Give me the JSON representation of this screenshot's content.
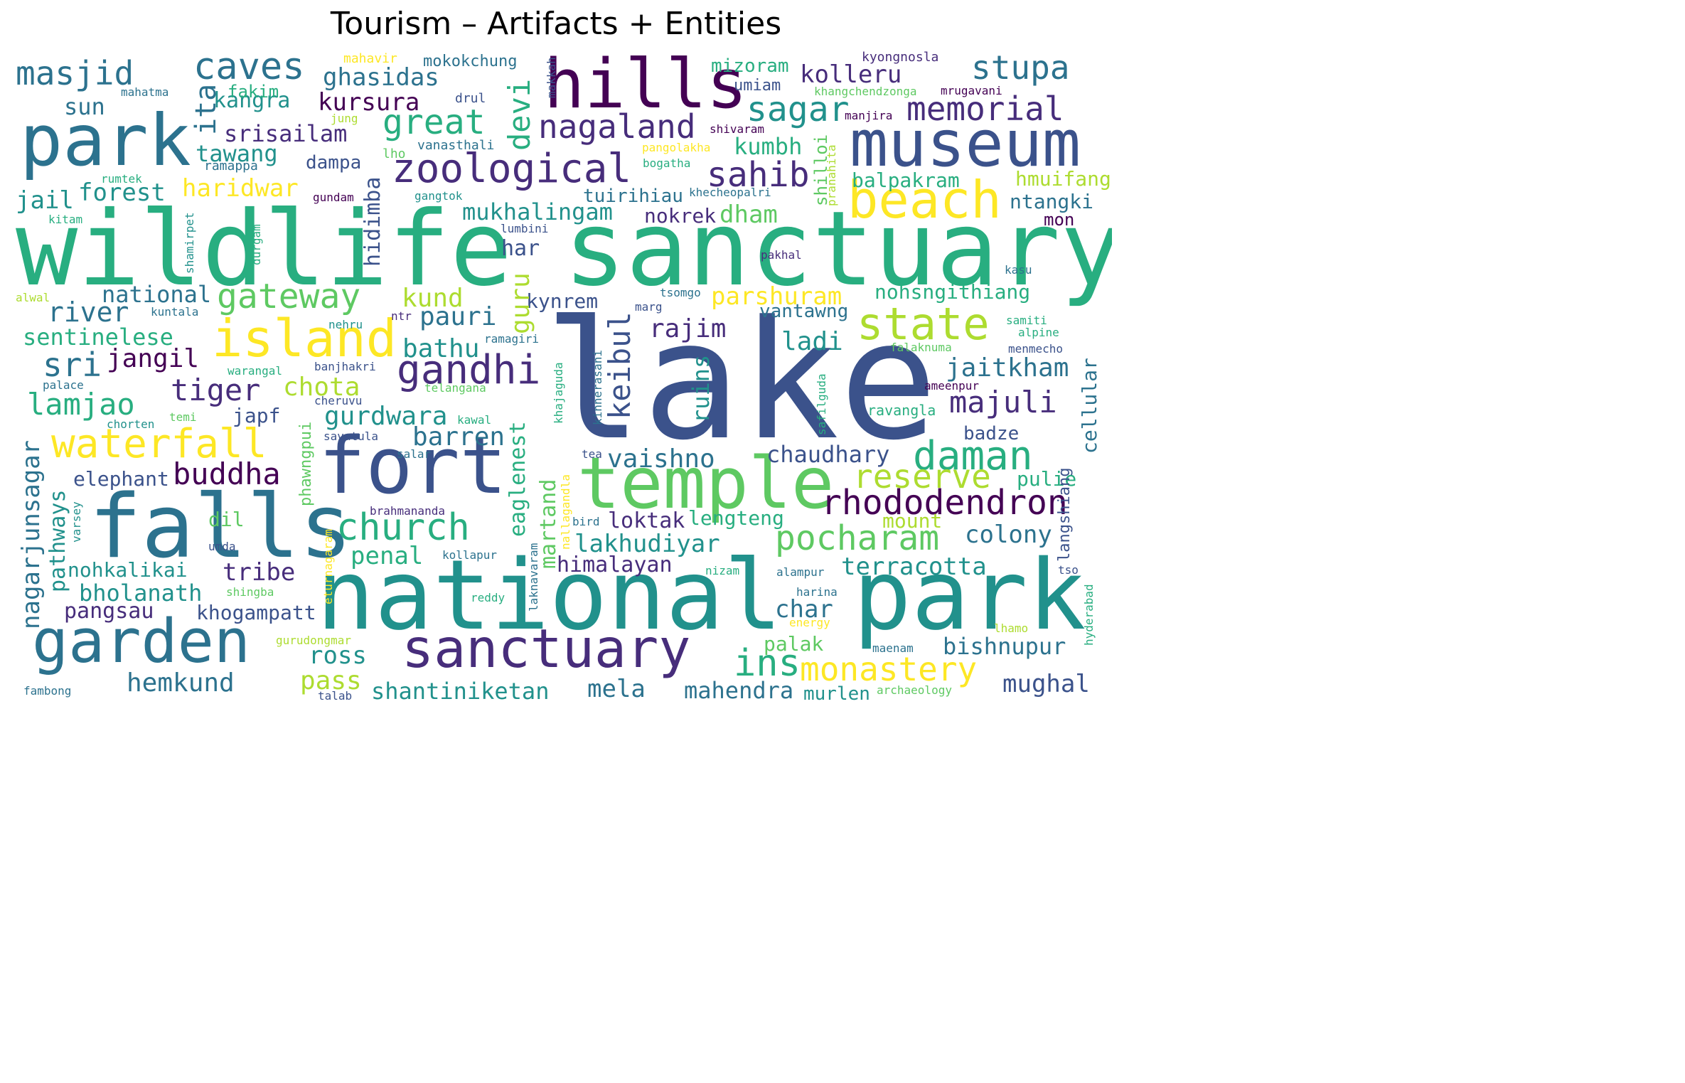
{
  "title": "Tourism – Artifacts + Entities",
  "palette": {
    "dark_purple": "#440154",
    "purple": "#472d7b",
    "indigo": "#3b528b",
    "blue": "#2c728e",
    "teal": "#21918c",
    "green": "#28ae80",
    "light_green": "#5ec962",
    "lime": "#addc30",
    "yellow": "#fde725"
  },
  "words": [
    {
      "text": "wildlife",
      "color": "#28ae80"
    },
    {
      "text": "sanctuary",
      "color": "#28ae80"
    },
    {
      "text": "lake",
      "color": "#3b528b"
    },
    {
      "text": "national",
      "color": "#21918c"
    },
    {
      "text": "park",
      "color": "#21918c"
    },
    {
      "text": "park",
      "color": "#2c728e"
    },
    {
      "text": "museum",
      "color": "#3b528b"
    },
    {
      "text": "hills",
      "color": "#440154"
    },
    {
      "text": "falls",
      "color": "#2c728e"
    },
    {
      "text": "fort",
      "color": "#3b528b"
    },
    {
      "text": "temple",
      "color": "#5ec962"
    },
    {
      "text": "garden",
      "color": "#2c728e"
    },
    {
      "text": "sanctuary",
      "color": "#472d7b"
    },
    {
      "text": "beach",
      "color": "#fde725"
    },
    {
      "text": "island",
      "color": "#fde725"
    },
    {
      "text": "zoological",
      "color": "#472d7b"
    },
    {
      "text": "masjid",
      "color": "#2c728e"
    },
    {
      "text": "caves",
      "color": "#2c728e"
    },
    {
      "text": "stupa",
      "color": "#2c728e"
    },
    {
      "text": "memorial",
      "color": "#472d7b"
    },
    {
      "text": "nagaland",
      "color": "#472d7b"
    },
    {
      "text": "sagar",
      "color": "#21918c"
    },
    {
      "text": "sahib",
      "color": "#472d7b"
    },
    {
      "text": "gandhi",
      "color": "#472d7b"
    },
    {
      "text": "state",
      "color": "#addc30"
    },
    {
      "text": "church",
      "color": "#28ae80"
    },
    {
      "text": "waterfall",
      "color": "#fde725"
    },
    {
      "text": "daman",
      "color": "#28ae80"
    },
    {
      "text": "rhododendron",
      "color": "#440154"
    },
    {
      "text": "pocharam",
      "color": "#5ec962"
    },
    {
      "text": "monastery",
      "color": "#fde725"
    },
    {
      "text": "ins",
      "color": "#28ae80"
    },
    {
      "text": "reserve",
      "color": "#addc30"
    },
    {
      "text": "great",
      "color": "#28ae80"
    },
    {
      "text": "gateway",
      "color": "#5ec962"
    },
    {
      "text": "tiger",
      "color": "#472d7b"
    },
    {
      "text": "buddha",
      "color": "#440154"
    },
    {
      "text": "majuli",
      "color": "#472d7b"
    },
    {
      "text": "lamjao",
      "color": "#28ae80"
    },
    {
      "text": "river",
      "color": "#2c728e"
    },
    {
      "text": "sri",
      "color": "#2c728e"
    },
    {
      "text": "jangil",
      "color": "#440154"
    },
    {
      "text": "kolleru",
      "color": "#472d7b"
    },
    {
      "text": "kursura",
      "color": "#440154"
    },
    {
      "text": "kangra",
      "color": "#21918c"
    },
    {
      "text": "ghasidas",
      "color": "#2c728e"
    },
    {
      "text": "srisailam",
      "color": "#472d7b"
    },
    {
      "text": "tawang",
      "color": "#21918c"
    },
    {
      "text": "forest",
      "color": "#21918c"
    },
    {
      "text": "jail",
      "color": "#21918c"
    },
    {
      "text": "haridwar",
      "color": "#fde725"
    },
    {
      "text": "mukhalingam",
      "color": "#21918c"
    },
    {
      "text": "kumbh",
      "color": "#28ae80"
    },
    {
      "text": "dham",
      "color": "#5ec962"
    },
    {
      "text": "nokrek",
      "color": "#472d7b"
    },
    {
      "text": "tuirihiau",
      "color": "#2c728e"
    },
    {
      "text": "balpakram",
      "color": "#28ae80"
    },
    {
      "text": "hmuifang",
      "color": "#addc30"
    },
    {
      "text": "ntangki",
      "color": "#2c728e"
    },
    {
      "text": "mon",
      "color": "#440154"
    },
    {
      "text": "sun",
      "color": "#2c728e"
    },
    {
      "text": "national",
      "color": "#2c728e"
    },
    {
      "text": "sentinelese",
      "color": "#28ae80"
    },
    {
      "text": "kund",
      "color": "#addc30"
    },
    {
      "text": "pauri",
      "color": "#2c728e"
    },
    {
      "text": "bathu",
      "color": "#21918c"
    },
    {
      "text": "chota",
      "color": "#addc30"
    },
    {
      "text": "gurdwara",
      "color": "#21918c"
    },
    {
      "text": "barren",
      "color": "#2c728e"
    },
    {
      "text": "vaishno",
      "color": "#2c728e"
    },
    {
      "text": "rajim",
      "color": "#472d7b"
    },
    {
      "text": "ladi",
      "color": "#21918c"
    },
    {
      "text": "kynrem",
      "color": "#3b528b"
    },
    {
      "text": "parshuram",
      "color": "#fde725"
    },
    {
      "text": "nohsngithiang",
      "color": "#28ae80"
    },
    {
      "text": "vantawng",
      "color": "#2c728e"
    },
    {
      "text": "jaitkham",
      "color": "#2c728e"
    },
    {
      "text": "chaudhary",
      "color": "#3b528b"
    },
    {
      "text": "badze",
      "color": "#3b528b"
    },
    {
      "text": "pulie",
      "color": "#28ae80"
    },
    {
      "text": "colony",
      "color": "#2c728e"
    },
    {
      "text": "loktak",
      "color": "#472d7b"
    },
    {
      "text": "lakhudiyar",
      "color": "#21918c"
    },
    {
      "text": "himalayan",
      "color": "#472d7b"
    },
    {
      "text": "terracotta",
      "color": "#21918c"
    },
    {
      "text": "bishnupur",
      "color": "#2c728e"
    },
    {
      "text": "mughal",
      "color": "#3b528b"
    },
    {
      "text": "mahendra",
      "color": "#2c728e"
    },
    {
      "text": "mela",
      "color": "#2c728e"
    },
    {
      "text": "shantiniketan",
      "color": "#21918c"
    },
    {
      "text": "hemkund",
      "color": "#2c728e"
    },
    {
      "text": "ross",
      "color": "#21918c"
    },
    {
      "text": "pass",
      "color": "#addc30"
    },
    {
      "text": "palak",
      "color": "#5ec962"
    },
    {
      "text": "char",
      "color": "#2c728e"
    },
    {
      "text": "tribe",
      "color": "#472d7b"
    },
    {
      "text": "penal",
      "color": "#28ae80"
    },
    {
      "text": "bholanath",
      "color": "#21918c"
    },
    {
      "text": "pangsau",
      "color": "#472d7b"
    },
    {
      "text": "khogampatt",
      "color": "#3b528b"
    },
    {
      "text": "nohkalikai",
      "color": "#21918c"
    },
    {
      "text": "elephant",
      "color": "#3b528b"
    },
    {
      "text": "dil",
      "color": "#5ec962"
    },
    {
      "text": "har",
      "color": "#3b528b"
    },
    {
      "text": "japf",
      "color": "#3b528b"
    },
    {
      "text": "lengteng",
      "color": "#28ae80"
    },
    {
      "text": "mount",
      "color": "#addc30"
    },
    {
      "text": "murlen",
      "color": "#21918c"
    },
    {
      "text": "mizoram",
      "color": "#28ae80"
    },
    {
      "text": "umiam",
      "color": "#3b528b"
    },
    {
      "text": "fakim",
      "color": "#28ae80"
    },
    {
      "text": "mahavir",
      "color": "#fde725"
    },
    {
      "text": "mokokchung",
      "color": "#2c728e"
    },
    {
      "text": "kyongnosla",
      "color": "#472d7b"
    },
    {
      "text": "khangchendzonga",
      "color": "#5ec962"
    },
    {
      "text": "mrugavani",
      "color": "#440154"
    },
    {
      "text": "mahatma",
      "color": "#2c728e"
    },
    {
      "text": "drul",
      "color": "#3b528b"
    },
    {
      "text": "jung",
      "color": "#addc30"
    },
    {
      "text": "manjira",
      "color": "#440154"
    },
    {
      "text": "shivaram",
      "color": "#440154"
    },
    {
      "text": "vanasthali",
      "color": "#2c728e"
    },
    {
      "text": "lho",
      "color": "#5ec962"
    },
    {
      "text": "pangolakha",
      "color": "#fde725"
    },
    {
      "text": "bogatha",
      "color": "#28ae80"
    },
    {
      "text": "dampa",
      "color": "#3b528b"
    },
    {
      "text": "ramappa",
      "color": "#2c728e"
    },
    {
      "text": "rumtek",
      "color": "#28ae80"
    },
    {
      "text": "gundam",
      "color": "#440154"
    },
    {
      "text": "gangtok",
      "color": "#21918c"
    },
    {
      "text": "kitam",
      "color": "#28ae80"
    },
    {
      "text": "khecheopalri",
      "color": "#2c728e"
    },
    {
      "text": "lumbini",
      "color": "#3b528b"
    },
    {
      "text": "pakhal",
      "color": "#472d7b"
    },
    {
      "text": "kasu",
      "color": "#2c728e"
    },
    {
      "text": "alwal",
      "color": "#addc30"
    },
    {
      "text": "tsomgo",
      "color": "#2c728e"
    },
    {
      "text": "marg",
      "color": "#3b528b"
    },
    {
      "text": "kuntala",
      "color": "#2c728e"
    },
    {
      "text": "ntr",
      "color": "#472d7b"
    },
    {
      "text": "nehru",
      "color": "#21918c"
    },
    {
      "text": "samiti",
      "color": "#28ae80"
    },
    {
      "text": "alpine",
      "color": "#28ae80"
    },
    {
      "text": "falaknuma",
      "color": "#5ec962"
    },
    {
      "text": "menmecho",
      "color": "#3b528b"
    },
    {
      "text": "warangal",
      "color": "#28ae80"
    },
    {
      "text": "banjhakri",
      "color": "#3b528b"
    },
    {
      "text": "palace",
      "color": "#2c728e"
    },
    {
      "text": "telangana",
      "color": "#5ec962"
    },
    {
      "text": "ameenpur",
      "color": "#440154"
    },
    {
      "text": "ramagiri",
      "color": "#2c728e"
    },
    {
      "text": "cheruvu",
      "color": "#3b528b"
    },
    {
      "text": "temi",
      "color": "#5ec962"
    },
    {
      "text": "chorten",
      "color": "#21918c"
    },
    {
      "text": "kawal",
      "color": "#28ae80"
    },
    {
      "text": "savatula",
      "color": "#3b528b"
    },
    {
      "text": "ravangla",
      "color": "#28ae80"
    },
    {
      "text": "salar",
      "color": "#2c728e"
    },
    {
      "text": "tea",
      "color": "#3b528b"
    },
    {
      "text": "brahmananda",
      "color": "#472d7b"
    },
    {
      "text": "bird",
      "color": "#2c728e"
    },
    {
      "text": "umda",
      "color": "#3b528b"
    },
    {
      "text": "kollapur",
      "color": "#2c728e"
    },
    {
      "text": "nizam",
      "color": "#28ae80"
    },
    {
      "text": "alampur",
      "color": "#2c728e"
    },
    {
      "text": "tso",
      "color": "#3b528b"
    },
    {
      "text": "harina",
      "color": "#2c728e"
    },
    {
      "text": "shingba",
      "color": "#5ec962"
    },
    {
      "text": "reddy",
      "color": "#28ae80"
    },
    {
      "text": "energy",
      "color": "#fde725"
    },
    {
      "text": "lhamo",
      "color": "#addc30"
    },
    {
      "text": "gurudongmar",
      "color": "#addc30"
    },
    {
      "text": "maenam",
      "color": "#2c728e"
    },
    {
      "text": "fambong",
      "color": "#2c728e"
    },
    {
      "text": "talab",
      "color": "#3b528b"
    },
    {
      "text": "archaeology",
      "color": "#5ec962"
    },
    {
      "text": "ita",
      "color": "#2c728e"
    },
    {
      "text": "devi",
      "color": "#28ae80"
    },
    {
      "text": "hidimba",
      "color": "#3b528b"
    },
    {
      "text": "guru",
      "color": "#addc30"
    },
    {
      "text": "eaglenest",
      "color": "#28ae80"
    },
    {
      "text": "martand",
      "color": "#5ec962"
    },
    {
      "text": "keibul",
      "color": "#3b528b"
    },
    {
      "text": "ruins",
      "color": "#21918c"
    },
    {
      "text": "cellular",
      "color": "#2c728e"
    },
    {
      "text": "langshiang",
      "color": "#3b528b"
    },
    {
      "text": "makkah",
      "color": "#3b528b"
    },
    {
      "text": "shilloi",
      "color": "#5ec962"
    },
    {
      "text": "pranahita",
      "color": "#addc30"
    },
    {
      "text": "nagarjunsagar",
      "color": "#2c728e"
    },
    {
      "text": "pathways",
      "color": "#21918c"
    },
    {
      "text": "varsey",
      "color": "#21918c"
    },
    {
      "text": "shamirpet",
      "color": "#21918c"
    },
    {
      "text": "durgam",
      "color": "#28ae80"
    },
    {
      "text": "phawngpui",
      "color": "#5ec962"
    },
    {
      "text": "eturnagaram",
      "color": "#fde725"
    },
    {
      "text": "khajaguda",
      "color": "#28ae80"
    },
    {
      "text": "nallagandla",
      "color": "#fde725"
    },
    {
      "text": "kinnerasani",
      "color": "#2c728e"
    },
    {
      "text": "safilguda",
      "color": "#28ae80"
    },
    {
      "text": "laknavaram",
      "color": "#2c728e"
    },
    {
      "text": "hyderabad",
      "color": "#28ae80"
    }
  ]
}
